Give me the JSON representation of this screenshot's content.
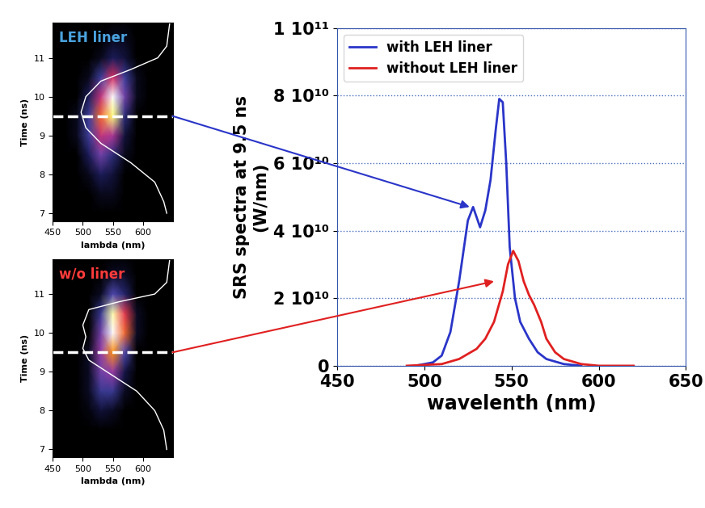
{
  "chart_data": [
    {
      "type": "heatmap",
      "title": "LEH liner",
      "xlabel": "lambda (nm)",
      "ylabel": "Time (ns)",
      "xlim": [
        450,
        650
      ],
      "xticks": [
        450,
        500,
        550,
        600
      ],
      "ylim": [
        6.8,
        11.9
      ],
      "yticks": [
        7,
        8,
        9,
        10,
        11
      ],
      "x": [
        450,
        470,
        490,
        510,
        530,
        550,
        570,
        590,
        610,
        630,
        650
      ],
      "y": [
        7,
        7.5,
        8,
        8.5,
        9,
        9.5,
        10,
        10.5,
        11,
        11.5,
        12
      ],
      "cells": [
        [
          0,
          0,
          0,
          0,
          0,
          0,
          0,
          0,
          0,
          0,
          0
        ],
        [
          0,
          0,
          0,
          0,
          0.05,
          0.05,
          0,
          0,
          0,
          0,
          0
        ],
        [
          0,
          0,
          0,
          0.05,
          0.15,
          0.1,
          0,
          0,
          0,
          0,
          0
        ],
        [
          0,
          0,
          0,
          0.15,
          0.35,
          0.2,
          0.05,
          0,
          0,
          0,
          0
        ],
        [
          0,
          0,
          0.05,
          0.25,
          0.5,
          0.45,
          0.1,
          0,
          0,
          0,
          0
        ],
        [
          0,
          0,
          0.05,
          0.25,
          0.65,
          0.9,
          0.2,
          0,
          0,
          0,
          0
        ],
        [
          0,
          0,
          0,
          0.15,
          0.5,
          1.0,
          0.35,
          0.05,
          0,
          0,
          0
        ],
        [
          0,
          0,
          0,
          0.05,
          0.25,
          0.55,
          0.25,
          0.05,
          0,
          0,
          0
        ],
        [
          0,
          0,
          0,
          0,
          0.05,
          0.15,
          0.1,
          0,
          0,
          0,
          0
        ],
        [
          0,
          0,
          0,
          0,
          0,
          0.05,
          0.05,
          0,
          0,
          0,
          0
        ],
        [
          0,
          0,
          0,
          0,
          0,
          0,
          0,
          0,
          0,
          0,
          0
        ]
      ],
      "lines": [
        {
          "color": "white",
          "x": [
            645,
            640,
            625,
            580,
            530,
            505,
            497,
            505,
            530,
            580,
            620,
            635,
            640
          ],
          "y": [
            11.9,
            11.3,
            11.0,
            10.7,
            10.4,
            10.0,
            9.6,
            9.2,
            8.8,
            8.3,
            7.8,
            7.3,
            7.0
          ]
        }
      ],
      "hline": {
        "value": 9.5,
        "color": "white",
        "line_style": "dashed"
      }
    },
    {
      "type": "heatmap",
      "title": "w/o liner",
      "xlabel": "lambda (nm)",
      "ylabel": "Time (ns)",
      "xlim": [
        450,
        650
      ],
      "xticks": [
        450,
        500,
        550,
        600
      ],
      "ylim": [
        6.8,
        11.9
      ],
      "yticks": [
        7,
        8,
        9,
        10,
        11
      ],
      "x": [
        450,
        470,
        490,
        510,
        530,
        550,
        570,
        590,
        610,
        630,
        650
      ],
      "y": [
        7,
        7.5,
        8,
        8.5,
        9,
        9.5,
        10,
        10.5,
        11,
        11.5,
        12
      ],
      "cells": [
        [
          0,
          0,
          0,
          0,
          0,
          0,
          0,
          0,
          0,
          0,
          0
        ],
        [
          0,
          0,
          0,
          0,
          0,
          0,
          0,
          0,
          0,
          0,
          0
        ],
        [
          0,
          0,
          0,
          0.02,
          0.08,
          0.05,
          0,
          0,
          0,
          0,
          0
        ],
        [
          0,
          0,
          0,
          0.05,
          0.2,
          0.2,
          0.05,
          0,
          0,
          0,
          0
        ],
        [
          0,
          0,
          0,
          0.05,
          0.3,
          0.35,
          0.1,
          0,
          0,
          0,
          0
        ],
        [
          0,
          0,
          0,
          0.05,
          0.35,
          0.6,
          0.25,
          0,
          0,
          0,
          0
        ],
        [
          0,
          0,
          0,
          0,
          0.3,
          0.85,
          0.55,
          0.05,
          0,
          0,
          0
        ],
        [
          0,
          0,
          0,
          0,
          0.2,
          0.8,
          0.5,
          0.05,
          0,
          0,
          0
        ],
        [
          0,
          0,
          0,
          0,
          0.05,
          0.25,
          0.15,
          0,
          0,
          0,
          0
        ],
        [
          0,
          0,
          0,
          0,
          0,
          0.05,
          0.05,
          0,
          0,
          0,
          0
        ],
        [
          0,
          0,
          0,
          0,
          0,
          0,
          0,
          0,
          0,
          0,
          0
        ]
      ],
      "lines": [
        {
          "color": "white",
          "x": [
            645,
            640,
            620,
            560,
            510,
            500,
            505,
            500,
            510,
            540,
            590,
            620,
            635,
            640
          ],
          "y": [
            11.9,
            11.3,
            11.0,
            10.8,
            10.6,
            10.2,
            9.9,
            9.6,
            9.3,
            9.0,
            8.5,
            8.0,
            7.5,
            7.0
          ]
        }
      ],
      "hline": {
        "value": 9.5,
        "color": "white",
        "line_style": "dashed"
      }
    },
    {
      "type": "line",
      "xlabel": "wavelenth (nm)",
      "ylabel": "SRS spectra at 9.5 ns\n(W/nm)",
      "xlim": [
        450,
        650
      ],
      "xticks": [
        450,
        500,
        550,
        600,
        650
      ],
      "ylim": [
        0,
        100000000000.0
      ],
      "yticks": [
        0,
        {
          "value": 20000000000.0,
          "label": "2 10¹⁰"
        },
        {
          "value": 40000000000.0,
          "label": "4 10¹⁰"
        },
        {
          "value": 60000000000.0,
          "label": "6 10¹⁰"
        },
        {
          "value": 80000000000.0,
          "label": "8 10¹⁰"
        },
        {
          "value": 100000000000.0,
          "label": "1 10¹¹"
        }
      ],
      "grid": "y",
      "legend": "upper left",
      "series": [
        {
          "name": "with LEH liner",
          "color": "#2a35c8",
          "x": [
            495,
            505,
            510,
            515,
            520,
            525,
            528,
            532,
            535,
            538,
            541,
            543,
            545,
            547,
            549,
            552,
            555,
            560,
            565,
            570,
            580,
            590
          ],
          "values": [
            0,
            1000000000.0,
            3000000000.0,
            10000000000.0,
            25000000000.0,
            43000000000.0,
            47000000000.0,
            41000000000.0,
            46000000000.0,
            55000000000.0,
            70000000000.0,
            79000000000.0,
            78000000000.0,
            60000000000.0,
            35000000000.0,
            20000000000.0,
            13000000000.0,
            8000000000.0,
            4000000000.0,
            2000000000.0,
            500000000.0,
            0
          ]
        },
        {
          "name": "without LEH liner",
          "color": "#e02020",
          "x": [
            490,
            510,
            520,
            530,
            535,
            540,
            545,
            548,
            551,
            554,
            557,
            560,
            563,
            567,
            570,
            575,
            580,
            590,
            600,
            620
          ],
          "values": [
            0,
            500000000.0,
            2000000000.0,
            5000000000.0,
            8000000000.0,
            13000000000.0,
            22000000000.0,
            30000000000.0,
            34000000000.0,
            31000000000.0,
            25000000000.0,
            21000000000.0,
            18000000000.0,
            13000000000.0,
            8000000000.0,
            4000000000.0,
            2000000000.0,
            500000000.0,
            0,
            0
          ]
        }
      ]
    }
  ]
}
